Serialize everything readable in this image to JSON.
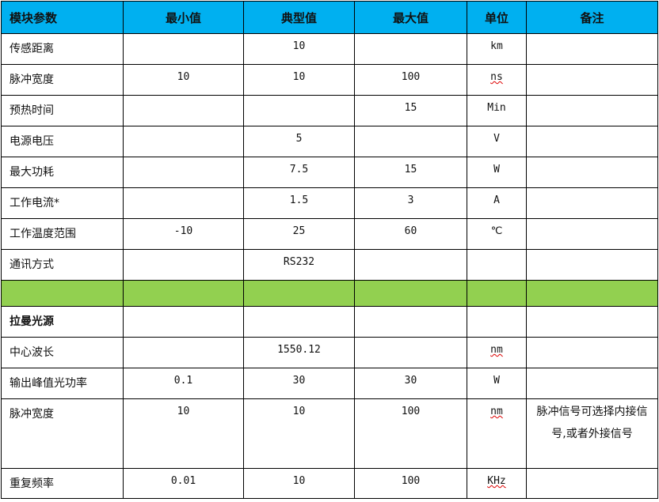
{
  "headers": [
    "模块参数",
    "最小值",
    "典型值",
    "最大值",
    "单位",
    "备注"
  ],
  "rows": [
    {
      "name": "传感距离",
      "min": "",
      "typ": "10",
      "max": "",
      "unit": "km",
      "note": ""
    },
    {
      "name": "脉冲宽度",
      "min": "10",
      "typ": "10",
      "max": "100",
      "unit": "ns",
      "note": ""
    },
    {
      "name": "预热时间",
      "min": "",
      "typ": "",
      "max": "15",
      "unit": "Min",
      "note": ""
    },
    {
      "name": "电源电压",
      "min": "",
      "typ": "5",
      "max": "",
      "unit": "V",
      "note": ""
    },
    {
      "name": "最大功耗",
      "min": "",
      "typ": "7.5",
      "max": "15",
      "unit": "W",
      "note": ""
    },
    {
      "name": "工作电流*",
      "min": "",
      "typ": "1.5",
      "max": "3",
      "unit": "A",
      "note": ""
    },
    {
      "name": "工作温度范围",
      "min": "-10",
      "typ": "25",
      "max": "60",
      "unit": "℃",
      "note": ""
    },
    {
      "name": "通讯方式",
      "min": "",
      "typ": "RS232",
      "max": "",
      "unit": "",
      "note": ""
    },
    {
      "name": "拉曼光源",
      "min": "",
      "typ": "",
      "max": "",
      "unit": "",
      "note": ""
    },
    {
      "name": "中心波长",
      "min": "",
      "typ": "1550.12",
      "max": "",
      "unit": "nm",
      "note": ""
    },
    {
      "name": "输出峰值光功率",
      "min": "0.1",
      "typ": "30",
      "max": "30",
      "unit": "W",
      "note": ""
    },
    {
      "name": "脉冲宽度",
      "min": "10",
      "typ": "10",
      "max": "100",
      "unit": "nm",
      "note": "脉冲信号可选择内接信号,或者外接信号"
    },
    {
      "name": "重复频率",
      "min": "0.01",
      "typ": "10",
      "max": "100",
      "unit": "KHz",
      "note": ""
    }
  ],
  "colors": {
    "header": "#00b0f0",
    "separator": "#92d050"
  }
}
